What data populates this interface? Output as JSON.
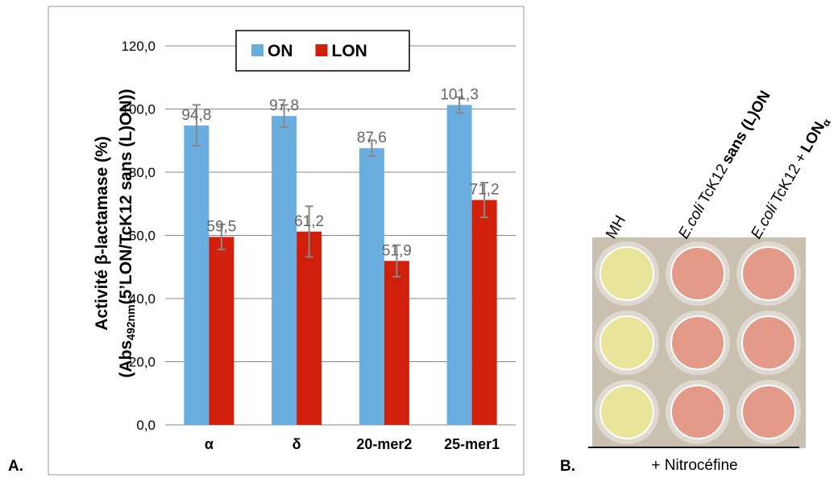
{
  "chart_data": {
    "type": "bar",
    "panel_labels": [
      "A.",
      "B."
    ],
    "ylabel": {
      "line1": "Activité β-lactamase (%)",
      "line2_start": "(Abs",
      "line2_sub": "492nm",
      "line2_end": "(5’LON/TcK12 sans (L)ON))"
    },
    "categories": [
      "α",
      "δ",
      "20-mer2",
      "25-mer1"
    ],
    "series": [
      {
        "name": "ON",
        "color": "#6aaee0",
        "values": [
          94.8,
          97.8,
          87.6,
          101.3
        ],
        "value_labels": [
          "94,8",
          "97,8",
          "87,6",
          "101,3"
        ],
        "errors": [
          6.5,
          3.5,
          2.5,
          2.5
        ]
      },
      {
        "name": "LON",
        "color": "#d01f0a",
        "values": [
          59.5,
          61.2,
          51.9,
          71.2
        ],
        "value_labels": [
          "59,5",
          "61,2",
          "51,9",
          "71,2"
        ],
        "errors": [
          4,
          8,
          5,
          5.5
        ]
      }
    ],
    "ylim": [
      0,
      120
    ],
    "yticks": [
      {
        "value": 0,
        "label": "0,0"
      },
      {
        "value": 20,
        "label": "20,0"
      },
      {
        "value": 40,
        "label": "40,0"
      },
      {
        "value": 60,
        "label": "60,0"
      },
      {
        "value": 80,
        "label": "80,0"
      },
      {
        "value": 100,
        "label": "100,0"
      },
      {
        "value": 120,
        "label": "120,0"
      }
    ],
    "grid": true,
    "legend": "top"
  },
  "photo": {
    "columns": [
      [
        "MH"
      ],
      [
        "E.coli",
        "TcK12",
        "sans (L)ON"
      ],
      [
        "E.coli",
        "TcK12 +",
        "LON",
        "α"
      ]
    ],
    "caption": "+ Nitrocéfine"
  }
}
